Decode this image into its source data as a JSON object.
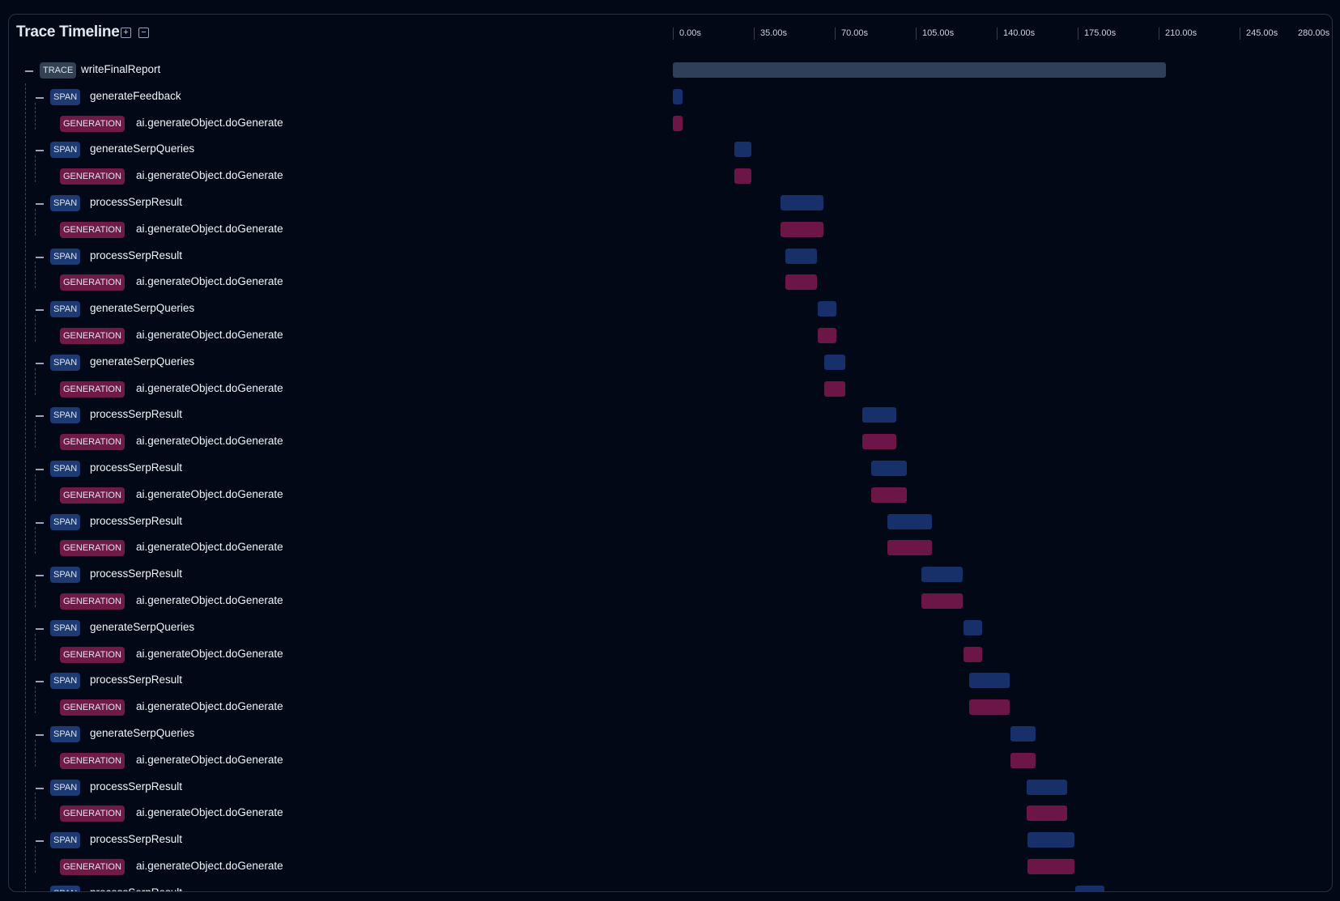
{
  "header": {
    "title": "Trace Timeline",
    "expand_icon": "plus-square-icon",
    "collapse_icon": "minus-square-icon"
  },
  "axis": {
    "unit": "s",
    "ticks": [
      "0.00s",
      "35.00s",
      "70.00s",
      "105.00s",
      "140.00s",
      "175.00s",
      "210.00s",
      "245.00s",
      "280.00s"
    ],
    "max": 280
  },
  "colors": {
    "background": "#030817",
    "trace": "#2f3f5a",
    "span": "#17306a",
    "generation": "#6b1646",
    "trace_badge": "#334155",
    "span_badge": "#1e3a72",
    "generation_badge": "#701a47"
  },
  "badges": {
    "trace": "TRACE",
    "span": "SPAN",
    "generation": "GENERATION"
  },
  "rows": [
    {
      "type": "trace",
      "name": "writeFinalReport",
      "start": 0,
      "end": 213.3
    },
    {
      "type": "span",
      "name": "generateFeedback",
      "start": 0,
      "end": 4.1
    },
    {
      "type": "generation",
      "name": "ai.generateObject.doGenerate",
      "start": 0,
      "end": 4.1
    },
    {
      "type": "span",
      "name": "generateSerpQueries",
      "start": 26.5,
      "end": 33.9
    },
    {
      "type": "generation",
      "name": "ai.generateObject.doGenerate",
      "start": 26.5,
      "end": 33.9
    },
    {
      "type": "span",
      "name": "processSerpResult",
      "start": 46.4,
      "end": 65.2
    },
    {
      "type": "generation",
      "name": "ai.generateObject.doGenerate",
      "start": 46.4,
      "end": 65.2
    },
    {
      "type": "span",
      "name": "processSerpResult",
      "start": 48.6,
      "end": 62.3
    },
    {
      "type": "generation",
      "name": "ai.generateObject.doGenerate",
      "start": 48.6,
      "end": 62.3
    },
    {
      "type": "span",
      "name": "generateSerpQueries",
      "start": 62.6,
      "end": 70.7
    },
    {
      "type": "generation",
      "name": "ai.generateObject.doGenerate",
      "start": 62.6,
      "end": 70.7
    },
    {
      "type": "span",
      "name": "generateSerpQueries",
      "start": 65.6,
      "end": 74.4
    },
    {
      "type": "generation",
      "name": "ai.generateObject.doGenerate",
      "start": 65.6,
      "end": 74.4
    },
    {
      "type": "span",
      "name": "processSerpResult",
      "start": 81.8,
      "end": 96.5
    },
    {
      "type": "generation",
      "name": "ai.generateObject.doGenerate",
      "start": 81.8,
      "end": 96.5
    },
    {
      "type": "span",
      "name": "processSerpResult",
      "start": 85.8,
      "end": 101.3
    },
    {
      "type": "generation",
      "name": "ai.generateObject.doGenerate",
      "start": 85.8,
      "end": 101.3
    },
    {
      "type": "span",
      "name": "processSerpResult",
      "start": 92.8,
      "end": 112.0
    },
    {
      "type": "generation",
      "name": "ai.generateObject.doGenerate",
      "start": 92.8,
      "end": 112.0
    },
    {
      "type": "span",
      "name": "processSerpResult",
      "start": 107.6,
      "end": 125.3
    },
    {
      "type": "generation",
      "name": "ai.generateObject.doGenerate",
      "start": 107.6,
      "end": 125.3
    },
    {
      "type": "span",
      "name": "generateSerpQueries",
      "start": 125.6,
      "end": 133.7
    },
    {
      "type": "generation",
      "name": "ai.generateObject.doGenerate",
      "start": 125.6,
      "end": 133.7
    },
    {
      "type": "span",
      "name": "processSerpResult",
      "start": 128.2,
      "end": 145.5
    },
    {
      "type": "generation",
      "name": "ai.generateObject.doGenerate",
      "start": 128.2,
      "end": 145.5
    },
    {
      "type": "span",
      "name": "generateSerpQueries",
      "start": 145.9,
      "end": 156.9
    },
    {
      "type": "generation",
      "name": "ai.generateObject.doGenerate",
      "start": 145.9,
      "end": 156.9
    },
    {
      "type": "span",
      "name": "processSerpResult",
      "start": 152.9,
      "end": 170.6
    },
    {
      "type": "generation",
      "name": "ai.generateObject.doGenerate",
      "start": 152.9,
      "end": 170.6
    },
    {
      "type": "span",
      "name": "processSerpResult",
      "start": 153.3,
      "end": 173.5
    },
    {
      "type": "generation",
      "name": "ai.generateObject.doGenerate",
      "start": 153.3,
      "end": 173.5
    },
    {
      "type": "span",
      "name": "processSerpResult",
      "start": 173.9,
      "end": 186.4
    }
  ]
}
